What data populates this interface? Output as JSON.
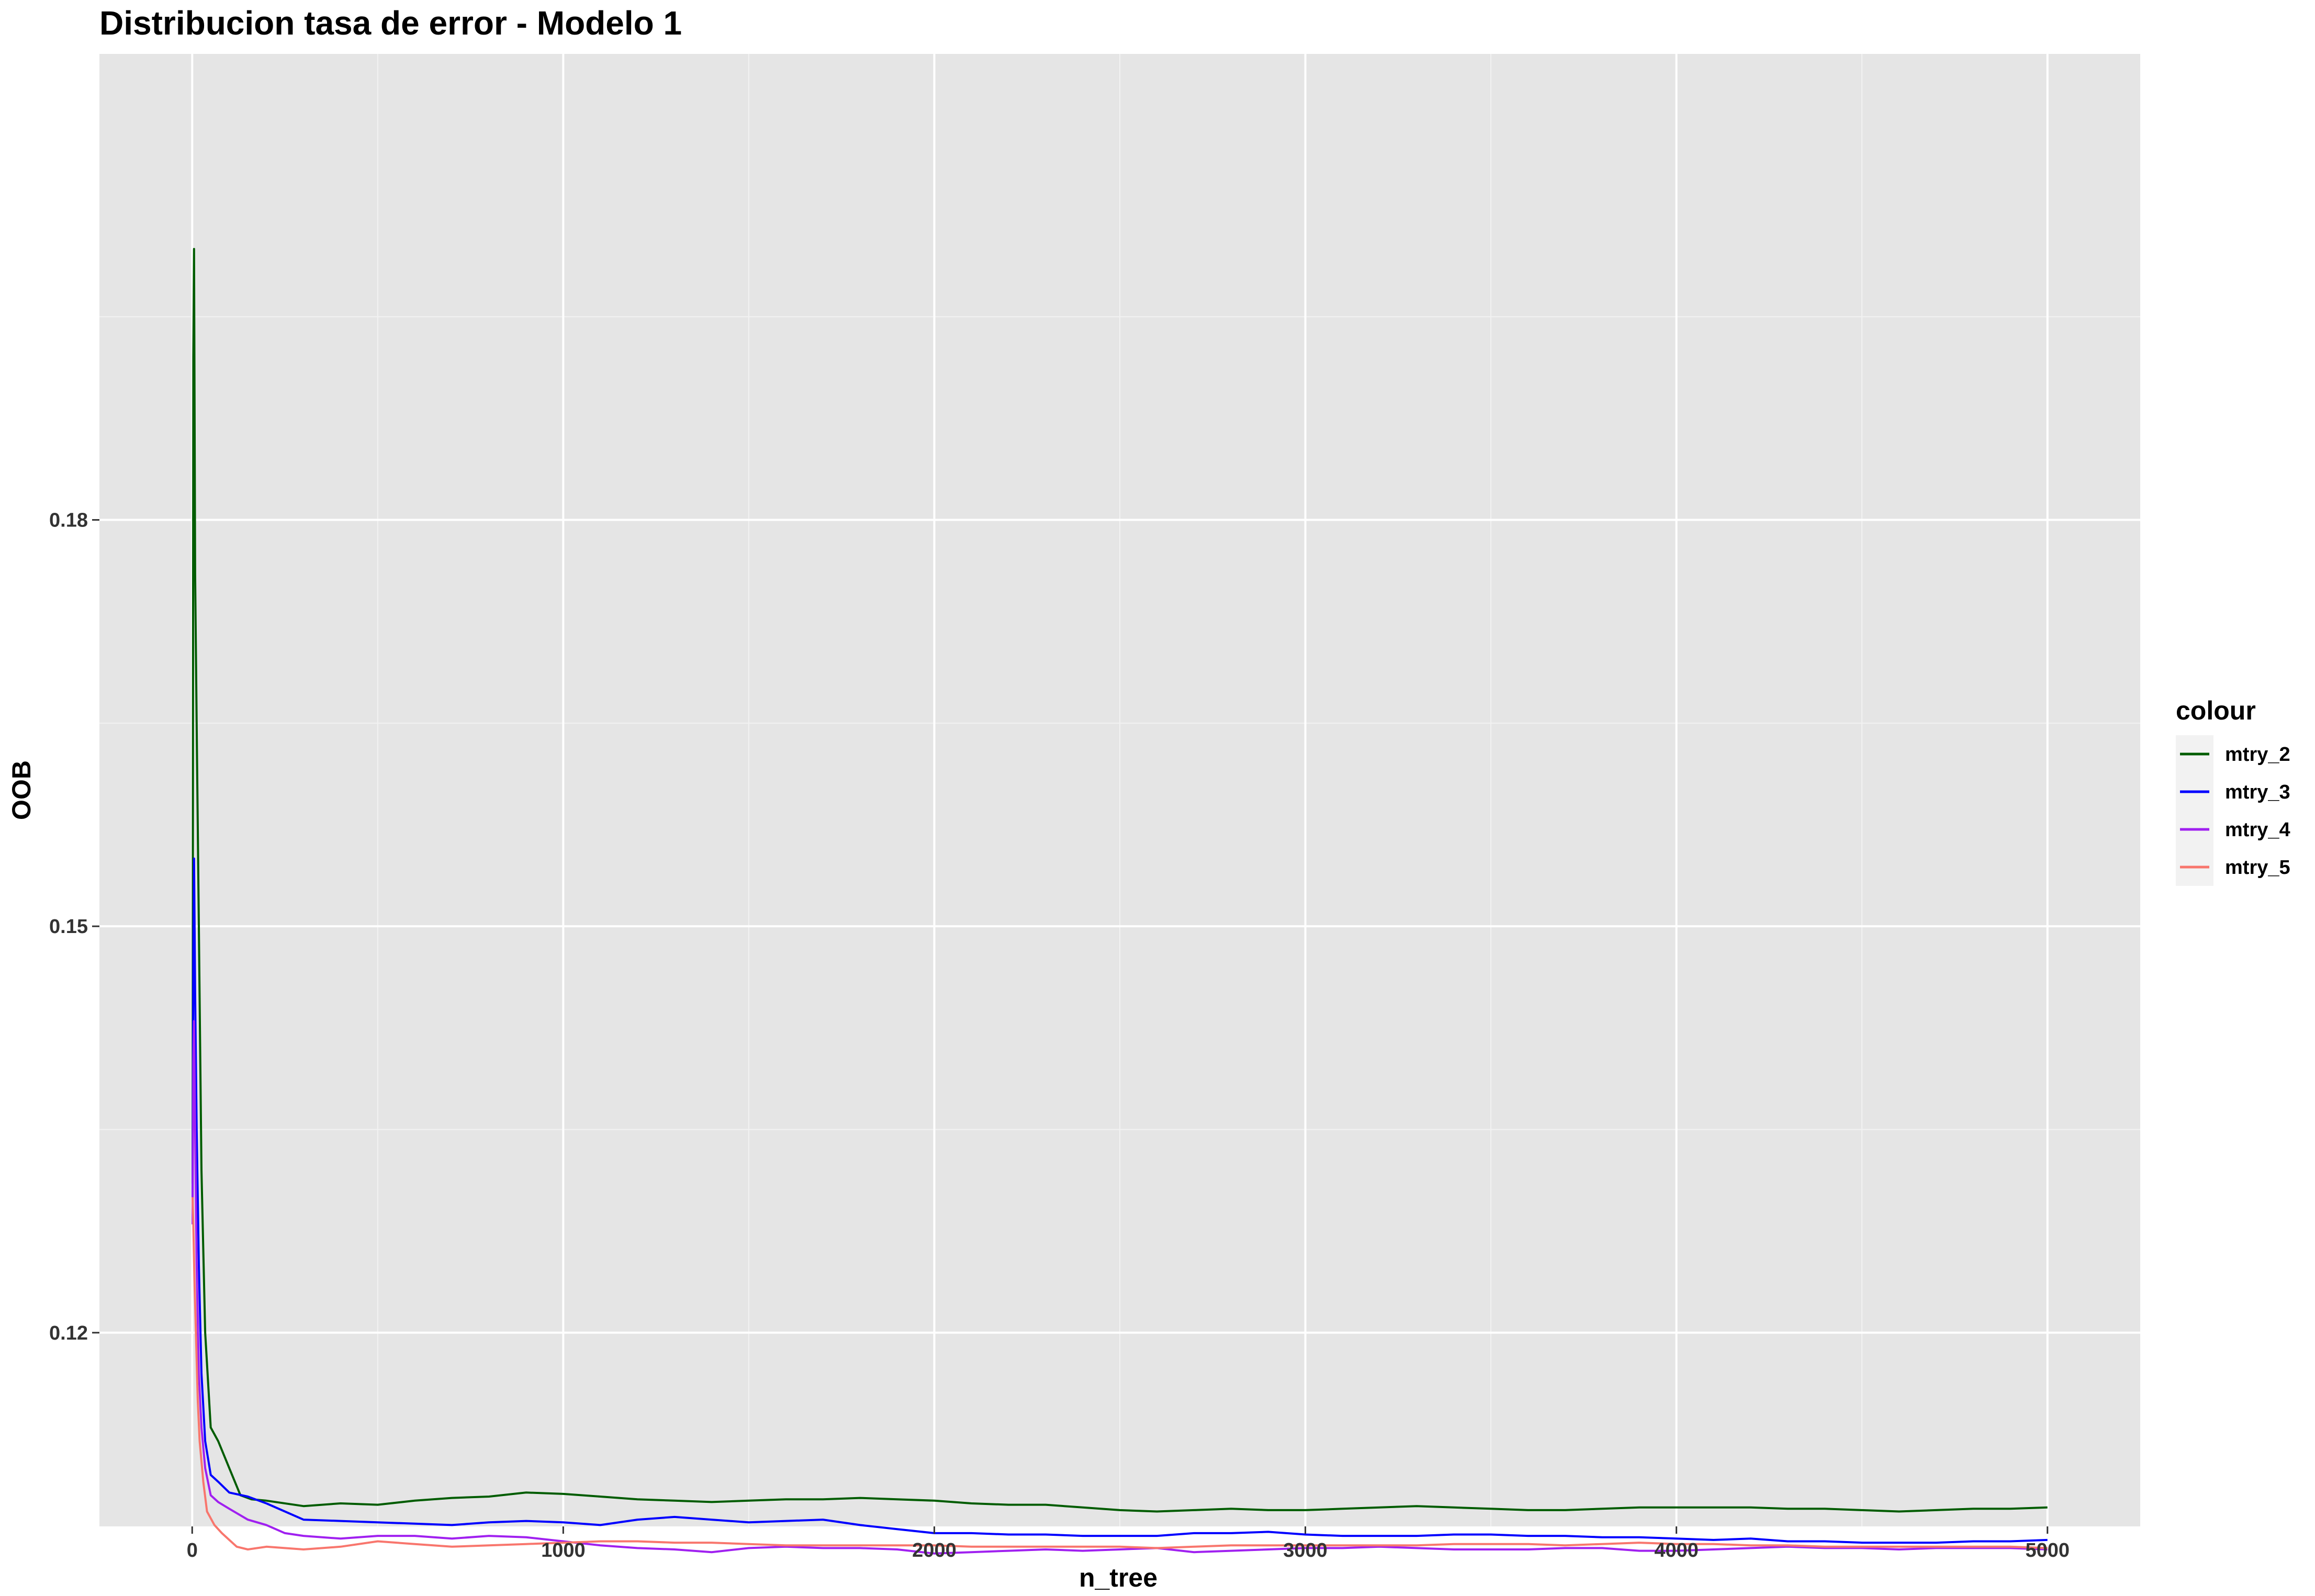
{
  "chart_data": {
    "type": "line",
    "title": "Distribucion tasa de error - Modelo 1",
    "xlabel": "n_tree",
    "ylabel": "OOB",
    "xlim": [
      -250,
      5250
    ],
    "ylim": [
      0.1057,
      0.2144
    ],
    "x_ticks": [
      0,
      1000,
      2000,
      3000,
      4000,
      5000
    ],
    "x_tick_labels": [
      "0",
      "1000",
      "2000",
      "3000",
      "4000",
      "5000"
    ],
    "y_ticks": [
      0.12,
      0.15,
      0.18
    ],
    "y_tick_labels": [
      "0.12",
      "0.15",
      "0.18"
    ],
    "grid": true,
    "panel_background": "#e5e5e5",
    "legend": {
      "title": "colour",
      "position": "right"
    },
    "series": [
      {
        "name": "mtry_2",
        "color": "#005c00",
        "points": [
          [
            1,
            0.131
          ],
          [
            3,
            0.192
          ],
          [
            5,
            0.2
          ],
          [
            8,
            0.176
          ],
          [
            12,
            0.165
          ],
          [
            18,
            0.15
          ],
          [
            25,
            0.132
          ],
          [
            35,
            0.12
          ],
          [
            50,
            0.113
          ],
          [
            70,
            0.112
          ],
          [
            100,
            0.11
          ],
          [
            130,
            0.108
          ],
          [
            160,
            0.1077
          ],
          [
            200,
            0.1076
          ],
          [
            300,
            0.1072
          ],
          [
            400,
            0.1074
          ],
          [
            500,
            0.1073
          ],
          [
            600,
            0.1076
          ],
          [
            700,
            0.1078
          ],
          [
            800,
            0.1079
          ],
          [
            900,
            0.1082
          ],
          [
            1000,
            0.1081
          ],
          [
            1100,
            0.1079
          ],
          [
            1200,
            0.1077
          ],
          [
            1300,
            0.1076
          ],
          [
            1400,
            0.1075
          ],
          [
            1500,
            0.1076
          ],
          [
            1600,
            0.1077
          ],
          [
            1700,
            0.1077
          ],
          [
            1800,
            0.1078
          ],
          [
            1900,
            0.1077
          ],
          [
            2000,
            0.1076
          ],
          [
            2100,
            0.1074
          ],
          [
            2200,
            0.1073
          ],
          [
            2300,
            0.1073
          ],
          [
            2400,
            0.1071
          ],
          [
            2500,
            0.1069
          ],
          [
            2600,
            0.1068
          ],
          [
            2700,
            0.1069
          ],
          [
            2800,
            0.107
          ],
          [
            2900,
            0.1069
          ],
          [
            3000,
            0.1069
          ],
          [
            3100,
            0.107
          ],
          [
            3200,
            0.1071
          ],
          [
            3300,
            0.1072
          ],
          [
            3400,
            0.1071
          ],
          [
            3500,
            0.107
          ],
          [
            3600,
            0.1069
          ],
          [
            3700,
            0.1069
          ],
          [
            3800,
            0.107
          ],
          [
            3900,
            0.1071
          ],
          [
            4000,
            0.1071
          ],
          [
            4100,
            0.1071
          ],
          [
            4200,
            0.1071
          ],
          [
            4300,
            0.107
          ],
          [
            4400,
            0.107
          ],
          [
            4500,
            0.1069
          ],
          [
            4600,
            0.1068
          ],
          [
            4700,
            0.1069
          ],
          [
            4800,
            0.107
          ],
          [
            4900,
            0.107
          ],
          [
            5000,
            0.1071
          ]
        ]
      },
      {
        "name": "mtry_3",
        "color": "#0000ff",
        "points": [
          [
            1,
            0.13
          ],
          [
            3,
            0.148
          ],
          [
            5,
            0.155
          ],
          [
            8,
            0.145
          ],
          [
            12,
            0.135
          ],
          [
            18,
            0.125
          ],
          [
            25,
            0.117
          ],
          [
            35,
            0.112
          ],
          [
            50,
            0.1095
          ],
          [
            70,
            0.109
          ],
          [
            100,
            0.1082
          ],
          [
            150,
            0.1079
          ],
          [
            200,
            0.1074
          ],
          [
            300,
            0.1062
          ],
          [
            400,
            0.1061
          ],
          [
            500,
            0.106
          ],
          [
            600,
            0.1059
          ],
          [
            700,
            0.1058
          ],
          [
            800,
            0.106
          ],
          [
            900,
            0.1061
          ],
          [
            1000,
            0.106
          ],
          [
            1100,
            0.1058
          ],
          [
            1200,
            0.1062
          ],
          [
            1300,
            0.1064
          ],
          [
            1400,
            0.1062
          ],
          [
            1500,
            0.106
          ],
          [
            1600,
            0.1061
          ],
          [
            1700,
            0.1062
          ],
          [
            1800,
            0.1058
          ],
          [
            1900,
            0.1055
          ],
          [
            2000,
            0.1052
          ],
          [
            2100,
            0.1052
          ],
          [
            2200,
            0.1051
          ],
          [
            2300,
            0.1051
          ],
          [
            2400,
            0.105
          ],
          [
            2500,
            0.105
          ],
          [
            2600,
            0.105
          ],
          [
            2700,
            0.1052
          ],
          [
            2800,
            0.1052
          ],
          [
            2900,
            0.1053
          ],
          [
            3000,
            0.1051
          ],
          [
            3100,
            0.105
          ],
          [
            3200,
            0.105
          ],
          [
            3300,
            0.105
          ],
          [
            3400,
            0.1051
          ],
          [
            3500,
            0.1051
          ],
          [
            3600,
            0.105
          ],
          [
            3700,
            0.105
          ],
          [
            3800,
            0.1049
          ],
          [
            3900,
            0.1049
          ],
          [
            4000,
            0.1048
          ],
          [
            4100,
            0.1047
          ],
          [
            4200,
            0.1048
          ],
          [
            4300,
            0.1046
          ],
          [
            4400,
            0.1046
          ],
          [
            4500,
            0.1045
          ],
          [
            4600,
            0.1045
          ],
          [
            4700,
            0.1045
          ],
          [
            4800,
            0.1046
          ],
          [
            4900,
            0.1046
          ],
          [
            5000,
            0.1047
          ]
        ]
      },
      {
        "name": "mtry_4",
        "color": "#a020f0",
        "points": [
          [
            1,
            0.128
          ],
          [
            3,
            0.14
          ],
          [
            5,
            0.143
          ],
          [
            8,
            0.135
          ],
          [
            12,
            0.125
          ],
          [
            18,
            0.117
          ],
          [
            25,
            0.113
          ],
          [
            35,
            0.11
          ],
          [
            50,
            0.108
          ],
          [
            70,
            0.1075
          ],
          [
            100,
            0.107
          ],
          [
            150,
            0.1062
          ],
          [
            200,
            0.1058
          ],
          [
            250,
            0.1052
          ],
          [
            300,
            0.105
          ],
          [
            400,
            0.1048
          ],
          [
            500,
            0.105
          ],
          [
            600,
            0.105
          ],
          [
            700,
            0.1048
          ],
          [
            800,
            0.105
          ],
          [
            900,
            0.1049
          ],
          [
            1000,
            0.1046
          ],
          [
            1100,
            0.1043
          ],
          [
            1200,
            0.1041
          ],
          [
            1300,
            0.104
          ],
          [
            1400,
            0.1038
          ],
          [
            1500,
            0.1041
          ],
          [
            1600,
            0.1042
          ],
          [
            1700,
            0.1041
          ],
          [
            1800,
            0.1041
          ],
          [
            1900,
            0.104
          ],
          [
            2000,
            0.1037
          ],
          [
            2100,
            0.1038
          ],
          [
            2200,
            0.1039
          ],
          [
            2300,
            0.104
          ],
          [
            2400,
            0.1039
          ],
          [
            2500,
            0.104
          ],
          [
            2600,
            0.1041
          ],
          [
            2700,
            0.1038
          ],
          [
            2800,
            0.1039
          ],
          [
            2900,
            0.104
          ],
          [
            3000,
            0.1041
          ],
          [
            3100,
            0.1041
          ],
          [
            3200,
            0.1042
          ],
          [
            3300,
            0.1041
          ],
          [
            3400,
            0.104
          ],
          [
            3500,
            0.104
          ],
          [
            3600,
            0.104
          ],
          [
            3700,
            0.1041
          ],
          [
            3800,
            0.1041
          ],
          [
            3900,
            0.1039
          ],
          [
            4000,
            0.1039
          ],
          [
            4100,
            0.104
          ],
          [
            4200,
            0.1041
          ],
          [
            4300,
            0.1042
          ],
          [
            4400,
            0.1041
          ],
          [
            4500,
            0.1041
          ],
          [
            4600,
            0.104
          ],
          [
            4700,
            0.1041
          ],
          [
            4800,
            0.1041
          ],
          [
            4900,
            0.1041
          ],
          [
            5000,
            0.104
          ]
        ]
      },
      {
        "name": "mtry_5",
        "color": "#f8766d",
        "points": [
          [
            1,
            0.13
          ],
          [
            3,
            0.128
          ],
          [
            6,
            0.124
          ],
          [
            10,
            0.12
          ],
          [
            15,
            0.115
          ],
          [
            20,
            0.112
          ],
          [
            30,
            0.109
          ],
          [
            40,
            0.1068
          ],
          [
            60,
            0.1058
          ],
          [
            80,
            0.1052
          ],
          [
            100,
            0.1047
          ],
          [
            120,
            0.1042
          ],
          [
            150,
            0.104
          ],
          [
            200,
            0.1042
          ],
          [
            300,
            0.104
          ],
          [
            400,
            0.1042
          ],
          [
            500,
            0.1046
          ],
          [
            600,
            0.1044
          ],
          [
            700,
            0.1042
          ],
          [
            800,
            0.1043
          ],
          [
            900,
            0.1044
          ],
          [
            1000,
            0.1045
          ],
          [
            1100,
            0.1046
          ],
          [
            1200,
            0.1046
          ],
          [
            1300,
            0.1045
          ],
          [
            1400,
            0.1045
          ],
          [
            1500,
            0.1044
          ],
          [
            1600,
            0.1043
          ],
          [
            1700,
            0.1043
          ],
          [
            1800,
            0.1043
          ],
          [
            1900,
            0.1043
          ],
          [
            2000,
            0.1043
          ],
          [
            2100,
            0.1042
          ],
          [
            2200,
            0.1042
          ],
          [
            2300,
            0.1042
          ],
          [
            2400,
            0.1042
          ],
          [
            2500,
            0.1042
          ],
          [
            2600,
            0.1041
          ],
          [
            2700,
            0.1042
          ],
          [
            2800,
            0.1043
          ],
          [
            2900,
            0.1043
          ],
          [
            3000,
            0.1043
          ],
          [
            3100,
            0.1043
          ],
          [
            3200,
            0.1043
          ],
          [
            3300,
            0.1043
          ],
          [
            3400,
            0.1044
          ],
          [
            3500,
            0.1044
          ],
          [
            3600,
            0.1044
          ],
          [
            3700,
            0.1043
          ],
          [
            3800,
            0.1044
          ],
          [
            3900,
            0.1045
          ],
          [
            4000,
            0.1044
          ],
          [
            4100,
            0.1044
          ],
          [
            4200,
            0.1043
          ],
          [
            4300,
            0.1043
          ],
          [
            4400,
            0.1042
          ],
          [
            4500,
            0.1042
          ],
          [
            4600,
            0.1042
          ],
          [
            4700,
            0.1042
          ],
          [
            4800,
            0.1042
          ],
          [
            4900,
            0.1042
          ],
          [
            5000,
            0.1041
          ]
        ]
      }
    ]
  }
}
